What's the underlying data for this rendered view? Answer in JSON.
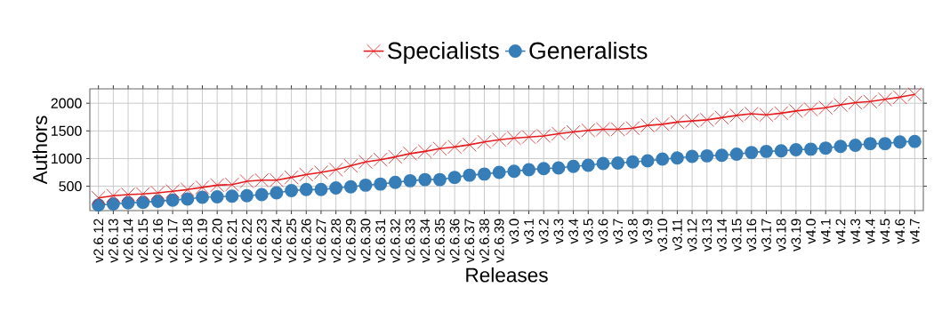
{
  "chart_data": {
    "type": "line",
    "xlabel": "Releases",
    "ylabel": "Authors",
    "categories": [
      "v2.6.12",
      "v2.6.13",
      "v2.6.14",
      "v2.6.15",
      "v2.6.16",
      "v2.6.17",
      "v2.6.18",
      "v2.6.19",
      "v2.6.20",
      "v2.6.21",
      "v2.6.22",
      "v2.6.23",
      "v2.6.24",
      "v2.6.25",
      "v2.6.26",
      "v2.6.27",
      "v2.6.28",
      "v2.6.29",
      "v2.6.30",
      "v2.6.31",
      "v2.6.32",
      "v2.6.33",
      "v2.6.34",
      "v2.6.35",
      "v2.6.36",
      "v2.6.37",
      "v2.6.38",
      "v2.6.39",
      "v3.0",
      "v3.1",
      "v3.2",
      "v3.3",
      "v3.4",
      "v3.5",
      "v3.6",
      "v3.7",
      "v3.8",
      "v3.9",
      "v3.10",
      "v3.11",
      "v3.12",
      "v3.13",
      "v3.14",
      "v3.15",
      "v3.16",
      "v3.17",
      "v3.18",
      "v3.19",
      "v4.0",
      "v4.1",
      "v4.2",
      "v4.3",
      "v4.4",
      "v4.5",
      "v4.6",
      "v4.7"
    ],
    "series": [
      {
        "name": "Specialists",
        "color": "#e41a1c",
        "marker": "cross",
        "values": [
          290,
          330,
          350,
          360,
          380,
          410,
          440,
          480,
          520,
          530,
          590,
          610,
          610,
          660,
          710,
          750,
          800,
          870,
          940,
          980,
          1030,
          1090,
          1130,
          1180,
          1210,
          1250,
          1300,
          1340,
          1370,
          1390,
          1410,
          1450,
          1480,
          1510,
          1530,
          1530,
          1550,
          1600,
          1620,
          1660,
          1680,
          1700,
          1740,
          1780,
          1810,
          1790,
          1820,
          1860,
          1890,
          1920,
          1970,
          2010,
          2030,
          2070,
          2110,
          2160
        ]
      },
      {
        "name": "Generalists",
        "color": "#377eb8",
        "marker": "circle",
        "values": [
          160,
          180,
          200,
          210,
          230,
          250,
          270,
          300,
          310,
          320,
          330,
          350,
          380,
          420,
          440,
          440,
          470,
          490,
          520,
          540,
          570,
          600,
          620,
          620,
          660,
          700,
          720,
          750,
          770,
          800,
          820,
          830,
          860,
          880,
          910,
          920,
          940,
          960,
          990,
          1010,
          1040,
          1050,
          1060,
          1080,
          1110,
          1130,
          1140,
          1160,
          1170,
          1190,
          1220,
          1240,
          1270,
          1270,
          1300,
          1310
        ]
      }
    ],
    "ylim": [
      60,
      2260
    ],
    "yticks": [
      500,
      1000,
      1500,
      2000
    ],
    "grid": true,
    "legend": "top"
  }
}
